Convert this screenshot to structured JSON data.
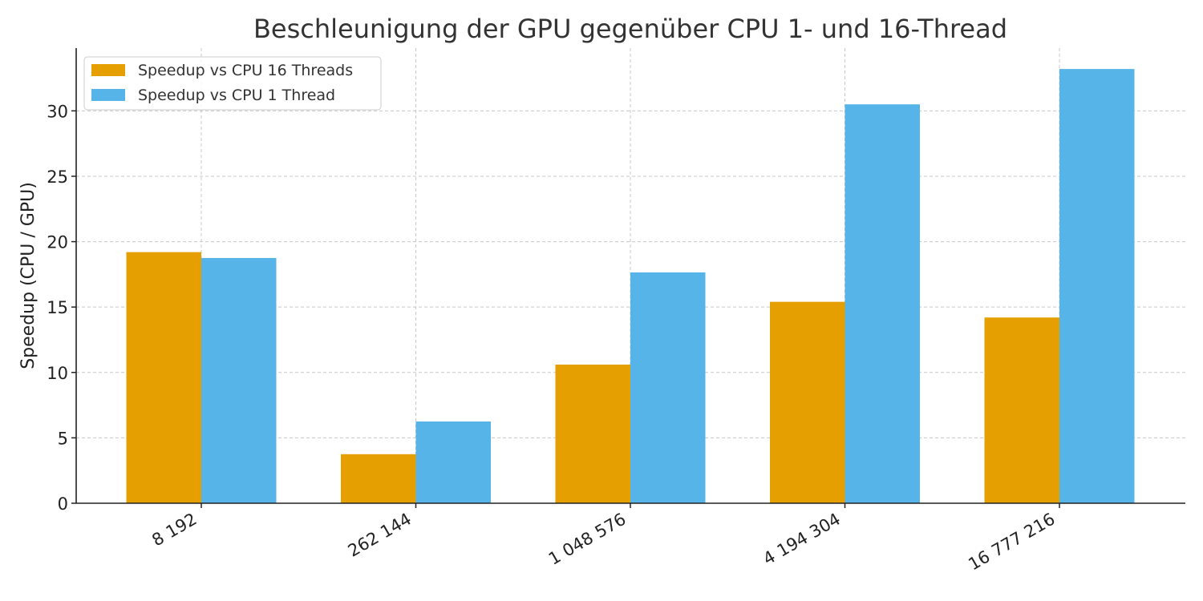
{
  "chart_data": {
    "type": "bar",
    "title": "Beschleunigung der GPU gegenüber CPU 1- und 16-Thread",
    "xlabel": "",
    "ylabel": "Speedup (CPU / GPU)",
    "categories": [
      "8 192",
      "262 144",
      "1 048 576",
      "4 194 304",
      "16 777 216"
    ],
    "series": [
      {
        "name": "Speedup vs CPU 16 Threads",
        "color": "#E69F00",
        "values": [
          19.2,
          3.75,
          10.6,
          15.4,
          14.2
        ]
      },
      {
        "name": "Speedup vs CPU 1 Thread",
        "color": "#56B4E9",
        "values": [
          18.75,
          6.25,
          17.65,
          30.5,
          33.2
        ]
      }
    ],
    "ylim": [
      0,
      34.8
    ],
    "yticks": [
      0,
      5,
      10,
      15,
      20,
      25,
      30
    ],
    "grid": true,
    "legend_position": "top-left"
  }
}
